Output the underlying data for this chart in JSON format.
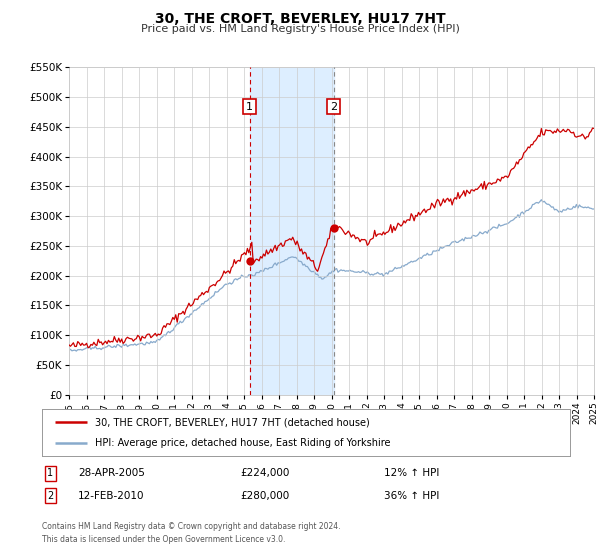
{
  "title": "30, THE CROFT, BEVERLEY, HU17 7HT",
  "subtitle": "Price paid vs. HM Land Registry's House Price Index (HPI)",
  "legend_line1": "30, THE CROFT, BEVERLEY, HU17 7HT (detached house)",
  "legend_line2": "HPI: Average price, detached house, East Riding of Yorkshire",
  "footnote1": "Contains HM Land Registry data © Crown copyright and database right 2024.",
  "footnote2": "This data is licensed under the Open Government Licence v3.0.",
  "transaction1_date": "28-APR-2005",
  "transaction1_price": "£224,000",
  "transaction1_hpi": "12% ↑ HPI",
  "transaction2_date": "12-FEB-2010",
  "transaction2_price": "£280,000",
  "transaction2_hpi": "36% ↑ HPI",
  "red_color": "#cc0000",
  "blue_color": "#88aacc",
  "shading_color": "#ddeeff",
  "grid_color": "#cccccc",
  "background_color": "#ffffff",
  "ylim": [
    0,
    550000
  ],
  "yticks": [
    0,
    50000,
    100000,
    150000,
    200000,
    250000,
    300000,
    350000,
    400000,
    450000,
    500000,
    550000
  ],
  "ytick_labels": [
    "£0",
    "£50K",
    "£100K",
    "£150K",
    "£200K",
    "£250K",
    "£300K",
    "£350K",
    "£400K",
    "£450K",
    "£500K",
    "£550K"
  ],
  "transaction1_x": 2005.32,
  "transaction1_y": 224000,
  "transaction2_x": 2010.12,
  "transaction2_y": 280000,
  "xlim_start": 1995,
  "xlim_end": 2025
}
